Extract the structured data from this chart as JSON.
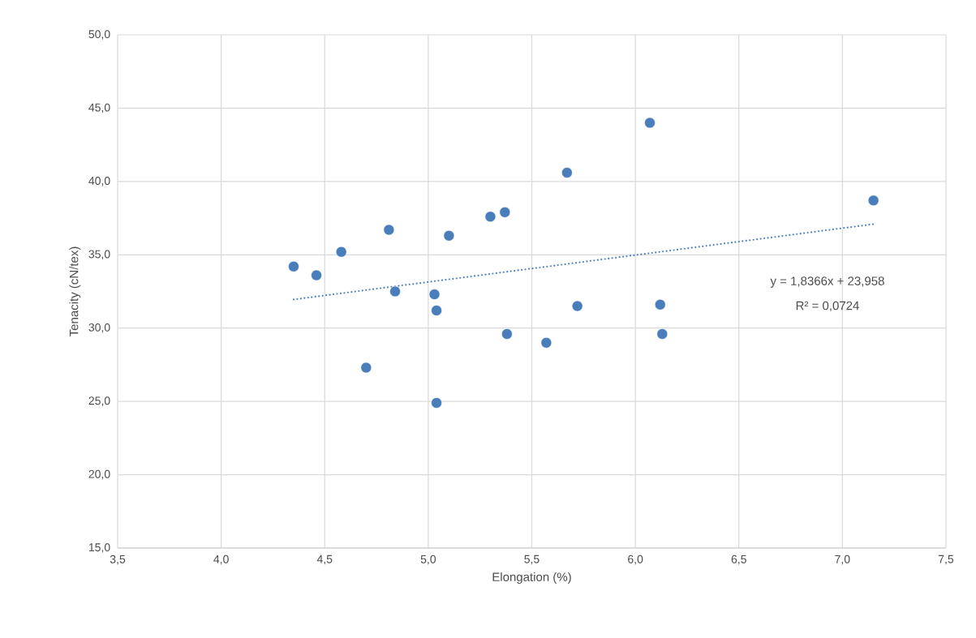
{
  "chart_data": {
    "type": "scatter",
    "xlabel": "Elongation (%)",
    "ylabel": "Tenacity (cN/tex)",
    "xlim": [
      3.5,
      7.5
    ],
    "ylim": [
      15,
      50
    ],
    "xticks": [
      {
        "value": 3.5,
        "label": "3,5"
      },
      {
        "value": 4.0,
        "label": "4,0"
      },
      {
        "value": 4.5,
        "label": "4,5"
      },
      {
        "value": 5.0,
        "label": "5,0"
      },
      {
        "value": 5.5,
        "label": "5,5"
      },
      {
        "value": 6.0,
        "label": "6,0"
      },
      {
        "value": 6.5,
        "label": "6,5"
      },
      {
        "value": 7.0,
        "label": "7,0"
      },
      {
        "value": 7.5,
        "label": "7,5"
      }
    ],
    "yticks": [
      {
        "value": 15,
        "label": "15,0"
      },
      {
        "value": 20,
        "label": "20,0"
      },
      {
        "value": 25,
        "label": "25,0"
      },
      {
        "value": 30,
        "label": "30,0"
      },
      {
        "value": 35,
        "label": "35,0"
      },
      {
        "value": 40,
        "label": "40,0"
      },
      {
        "value": 45,
        "label": "45,0"
      },
      {
        "value": 50,
        "label": "50,0"
      }
    ],
    "grid": true,
    "marker": "circle",
    "series": [
      {
        "color": "#4a7ebb",
        "x": [
          4.35,
          4.46,
          4.58,
          4.7,
          4.81,
          4.84,
          5.03,
          5.04,
          5.04,
          5.1,
          5.3,
          5.37,
          5.38,
          5.57,
          5.67,
          5.72,
          6.07,
          6.12,
          6.13,
          7.15
        ],
        "values": [
          34.2,
          33.6,
          35.2,
          27.3,
          36.7,
          32.5,
          32.3,
          31.2,
          24.9,
          36.3,
          37.6,
          37.9,
          29.6,
          29.0,
          40.6,
          31.5,
          44.0,
          31.6,
          29.6,
          38.7
        ]
      },
      {
        "type": "line",
        "color": "#4a7ebb",
        "line_style": "dotted",
        "marker": "none",
        "x": [
          4.35,
          7.15
        ],
        "values": [
          31.95,
          37.09
        ]
      }
    ],
    "annotations": [
      "y = 1,8366x + 23,958",
      "R² = 0,0724"
    ]
  }
}
